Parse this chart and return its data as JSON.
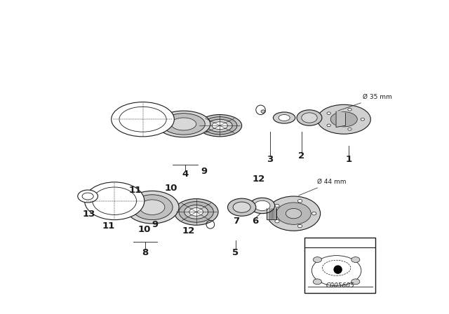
{
  "bg_color": "#ffffff",
  "line_color": "#1a1a1a",
  "fig_width": 6.4,
  "fig_height": 4.48,
  "dpi": 100,
  "diagram_label": "C005605",
  "dim_label_top": "Ø 35 mm",
  "dim_label_bot": "Ø 44 mm"
}
